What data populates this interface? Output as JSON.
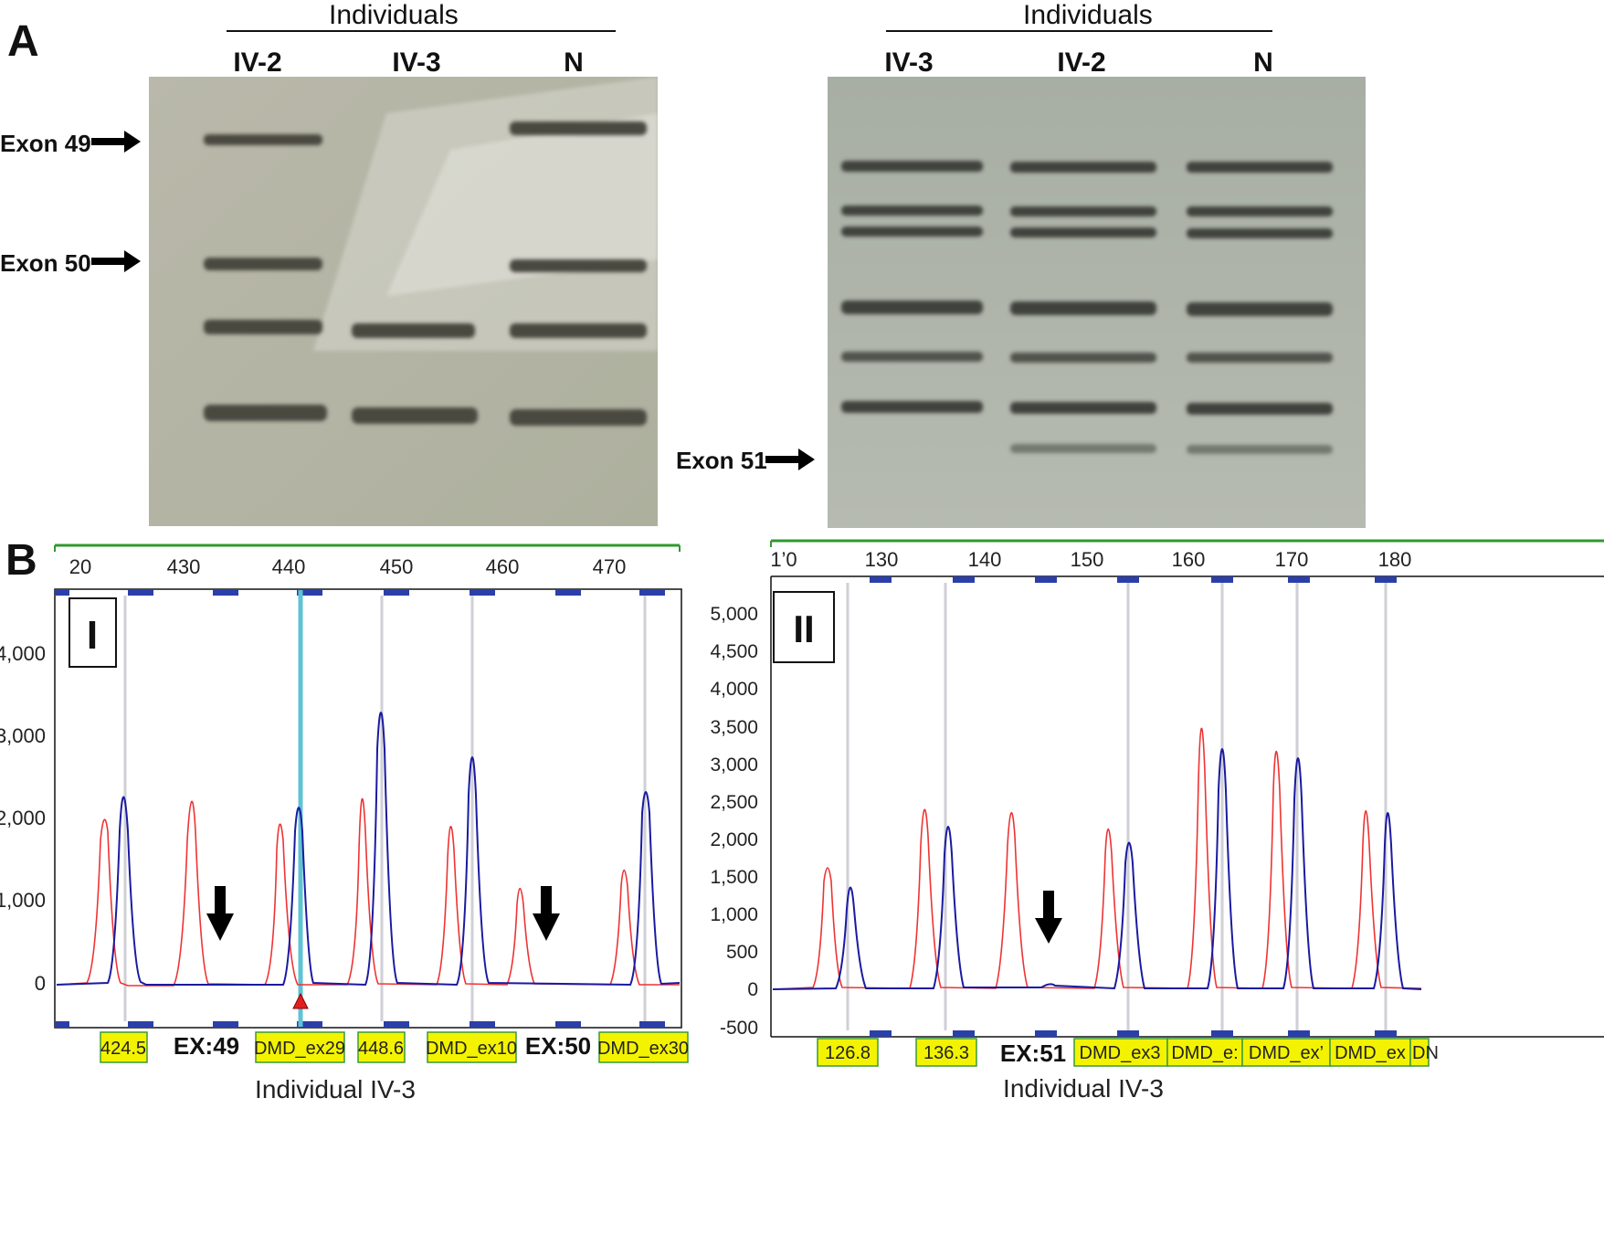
{
  "figure": {
    "panel_a": {
      "letter": "A",
      "left_gel": {
        "header": "Individuals",
        "lanes": [
          "IV-2",
          "IV-3",
          "N"
        ],
        "markers": [
          "Exon 49",
          "Exon 50"
        ]
      },
      "right_gel": {
        "header": "Individuals",
        "lanes": [
          "IV-3",
          "IV-2",
          "N"
        ],
        "markers": [
          "Exon 51"
        ]
      }
    },
    "panel_b": {
      "letter": "B",
      "plot1": {
        "label": "I",
        "caption": "Individual IV-3",
        "x_ticks": [
          "20",
          "430",
          "440",
          "450",
          "460",
          "470"
        ],
        "y_ticks": [
          "4,000",
          "3,000",
          "2,000",
          "1,000",
          "0"
        ],
        "bin_labels": [
          "424.5",
          "EX:49",
          "DMD_ex29",
          "448.6",
          "DMD_ex10",
          "EX:50",
          "DMD_ex30"
        ]
      },
      "plot2": {
        "label": "II",
        "caption": "Individual IV-3",
        "x_ticks": [
          "1’0",
          "130",
          "140",
          "150",
          "160",
          "170",
          "180"
        ],
        "y_ticks": [
          "5,000",
          "4,500",
          "4,000",
          "3,500",
          "3,000",
          "2,500",
          "2,000",
          "1,500",
          "1,000",
          "500",
          "0",
          "-500"
        ],
        "bin_labels": [
          "126.8",
          "136.3",
          "EX:51",
          "DMD_ex3",
          "DMD_e:",
          "DMD_ex’",
          "DMD_ex",
          "DN"
        ]
      }
    },
    "colors": {
      "series_blue": "#1a1aa0",
      "series_red": "#ee3333",
      "bin_yellow": "#f3f300",
      "cursor": "#5fc3d3"
    }
  }
}
